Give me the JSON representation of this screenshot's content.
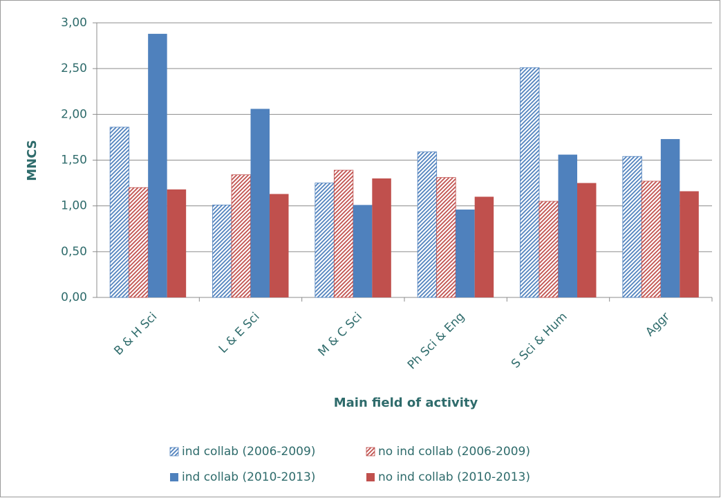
{
  "chart_data": {
    "type": "bar",
    "y_label": "MNCS",
    "x_label": "Main field of activity",
    "categories": [
      "B & H Sci",
      "L & E Sci",
      "M & C Sci",
      "Ph Sci & Eng",
      "S Sci & Hum",
      "Aggr"
    ],
    "series": [
      {
        "name": "ind collab (2006-2009)",
        "color": "#4f81bd",
        "hatched": true,
        "values": [
          1.86,
          1.01,
          1.25,
          1.59,
          2.51,
          1.54
        ]
      },
      {
        "name": "no ind collab (2006-2009)",
        "color": "#c0504d",
        "hatched": true,
        "values": [
          1.2,
          1.34,
          1.39,
          1.31,
          1.05,
          1.27
        ]
      },
      {
        "name": "ind collab (2010-2013)",
        "color": "#4f81bd",
        "hatched": false,
        "values": [
          2.88,
          2.06,
          1.01,
          0.96,
          1.56,
          1.73
        ]
      },
      {
        "name": "no ind collab (2010-2013)",
        "color": "#c0504d",
        "hatched": false,
        "values": [
          1.18,
          1.13,
          1.3,
          1.1,
          1.25,
          1.16
        ]
      }
    ],
    "ylim": [
      0,
      3
    ],
    "yticks": [
      {
        "value": 0,
        "label": "0,00"
      },
      {
        "value": 0.5,
        "label": "0,50"
      },
      {
        "value": 1,
        "label": "1,00"
      },
      {
        "value": 1.5,
        "label": "1,50"
      },
      {
        "value": 2,
        "label": "2,00"
      },
      {
        "value": 2.5,
        "label": "2,50"
      },
      {
        "value": 3,
        "label": "3,00"
      }
    ],
    "grid": true
  }
}
